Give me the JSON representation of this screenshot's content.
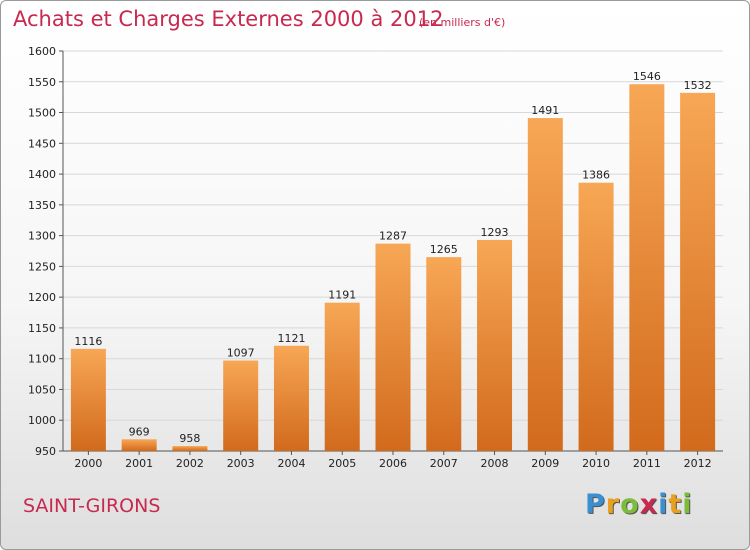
{
  "header": {
    "title": "Achats et Charges Externes 2000 à 2012",
    "subtitle": "(en milliers d'€)"
  },
  "footer": {
    "commune": "SAINT-GIRONS",
    "logo_letters": [
      "P",
      "r",
      "o",
      "x",
      "i",
      "t",
      "i"
    ],
    "logo_colors": [
      "#3a8fd0",
      "#e8a020",
      "#7cbc3a",
      "#c8294f",
      "#3a8fd0",
      "#e8a020",
      "#7cbc3a"
    ]
  },
  "colors": {
    "title": "#c8294f",
    "bar_top": "#f7a755",
    "bar_bottom": "#d26a1c",
    "gridline": "#d8d8d8"
  },
  "chart_data": {
    "type": "bar",
    "title": "Achats et Charges Externes 2000 à 2012",
    "categories": [
      "2000",
      "2001",
      "2002",
      "2003",
      "2004",
      "2005",
      "2006",
      "2007",
      "2008",
      "2009",
      "2010",
      "2011",
      "2012"
    ],
    "values": [
      1116,
      969,
      958,
      1097,
      1121,
      1191,
      1287,
      1265,
      1293,
      1491,
      1386,
      1546,
      1532
    ],
    "ylim": [
      950,
      1600
    ],
    "yticks": [
      950,
      1000,
      1050,
      1100,
      1150,
      1200,
      1250,
      1300,
      1350,
      1400,
      1450,
      1500,
      1550,
      1600
    ],
    "xlabel": "",
    "ylabel": "",
    "grid": true,
    "legend": "none"
  }
}
